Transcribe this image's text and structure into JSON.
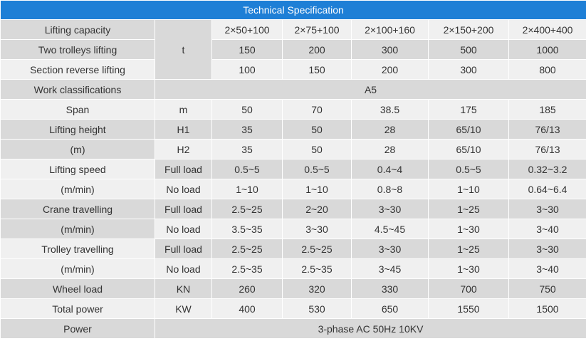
{
  "title": "Technical Specification",
  "rows": {
    "lifting_capacity": {
      "label": "Lifting capacity",
      "values": [
        "2×50+100",
        "2×75+100",
        "2×100+160",
        "2×150+200",
        "2×400+400"
      ]
    },
    "capacity_unit": "t",
    "two_trolleys": {
      "label": "Two trolleys lifting",
      "values": [
        "150",
        "200",
        "300",
        "500",
        "1000"
      ]
    },
    "section_reverse": {
      "label": "Section reverse lifting",
      "values": [
        "100",
        "150",
        "200",
        "300",
        "800"
      ]
    },
    "work_class": {
      "label": "Work classifications",
      "value": "A5"
    },
    "span": {
      "label": "Span",
      "unit": "m",
      "values": [
        "50",
        "70",
        "38.5",
        "175",
        "185"
      ]
    },
    "lifting_height": {
      "label": "Lifting height",
      "unit_label": "(m)",
      "h1": {
        "sub": "H1",
        "values": [
          "35",
          "50",
          "28",
          "65/10",
          "76/13"
        ]
      },
      "h2": {
        "sub": "H2",
        "values": [
          "35",
          "50",
          "28",
          "65/10",
          "76/13"
        ]
      }
    },
    "lifting_speed": {
      "label": "Lifting speed",
      "unit_label": "(m/min)",
      "full": {
        "sub": "Full load",
        "values": [
          "0.5~5",
          "0.5~5",
          "0.4~4",
          "0.5~5",
          "0.32~3.2"
        ]
      },
      "none": {
        "sub": "No load",
        "values": [
          "1~10",
          "1~10",
          "0.8~8",
          "1~10",
          "0.64~6.4"
        ]
      }
    },
    "crane_travelling": {
      "label": "Crane travelling",
      "unit_label": "(m/min)",
      "full": {
        "sub": "Full load",
        "values": [
          "2.5~25",
          "2~20",
          "3~30",
          "1~25",
          "3~30"
        ]
      },
      "none": {
        "sub": "No load",
        "values": [
          "3.5~35",
          "3~30",
          "4.5~45",
          "1~30",
          "3~40"
        ]
      }
    },
    "trolley_travelling": {
      "label": "Trolley travelling",
      "unit_label": "(m/min)",
      "full": {
        "sub": "Full load",
        "values": [
          "2.5~25",
          "2.5~25",
          "3~30",
          "1~25",
          "3~30"
        ]
      },
      "none": {
        "sub": "No load",
        "values": [
          "2.5~35",
          "2.5~35",
          "3~45",
          "1~30",
          "3~40"
        ]
      }
    },
    "wheel_load": {
      "label": "Wheel load",
      "unit": "KN",
      "values": [
        "260",
        "320",
        "330",
        "700",
        "750"
      ]
    },
    "total_power": {
      "label": "Total power",
      "unit": "KW",
      "values": [
        "400",
        "530",
        "650",
        "1550",
        "1500"
      ]
    },
    "power": {
      "label": "Power",
      "value": "3-phase AC 50Hz 10KV"
    }
  }
}
